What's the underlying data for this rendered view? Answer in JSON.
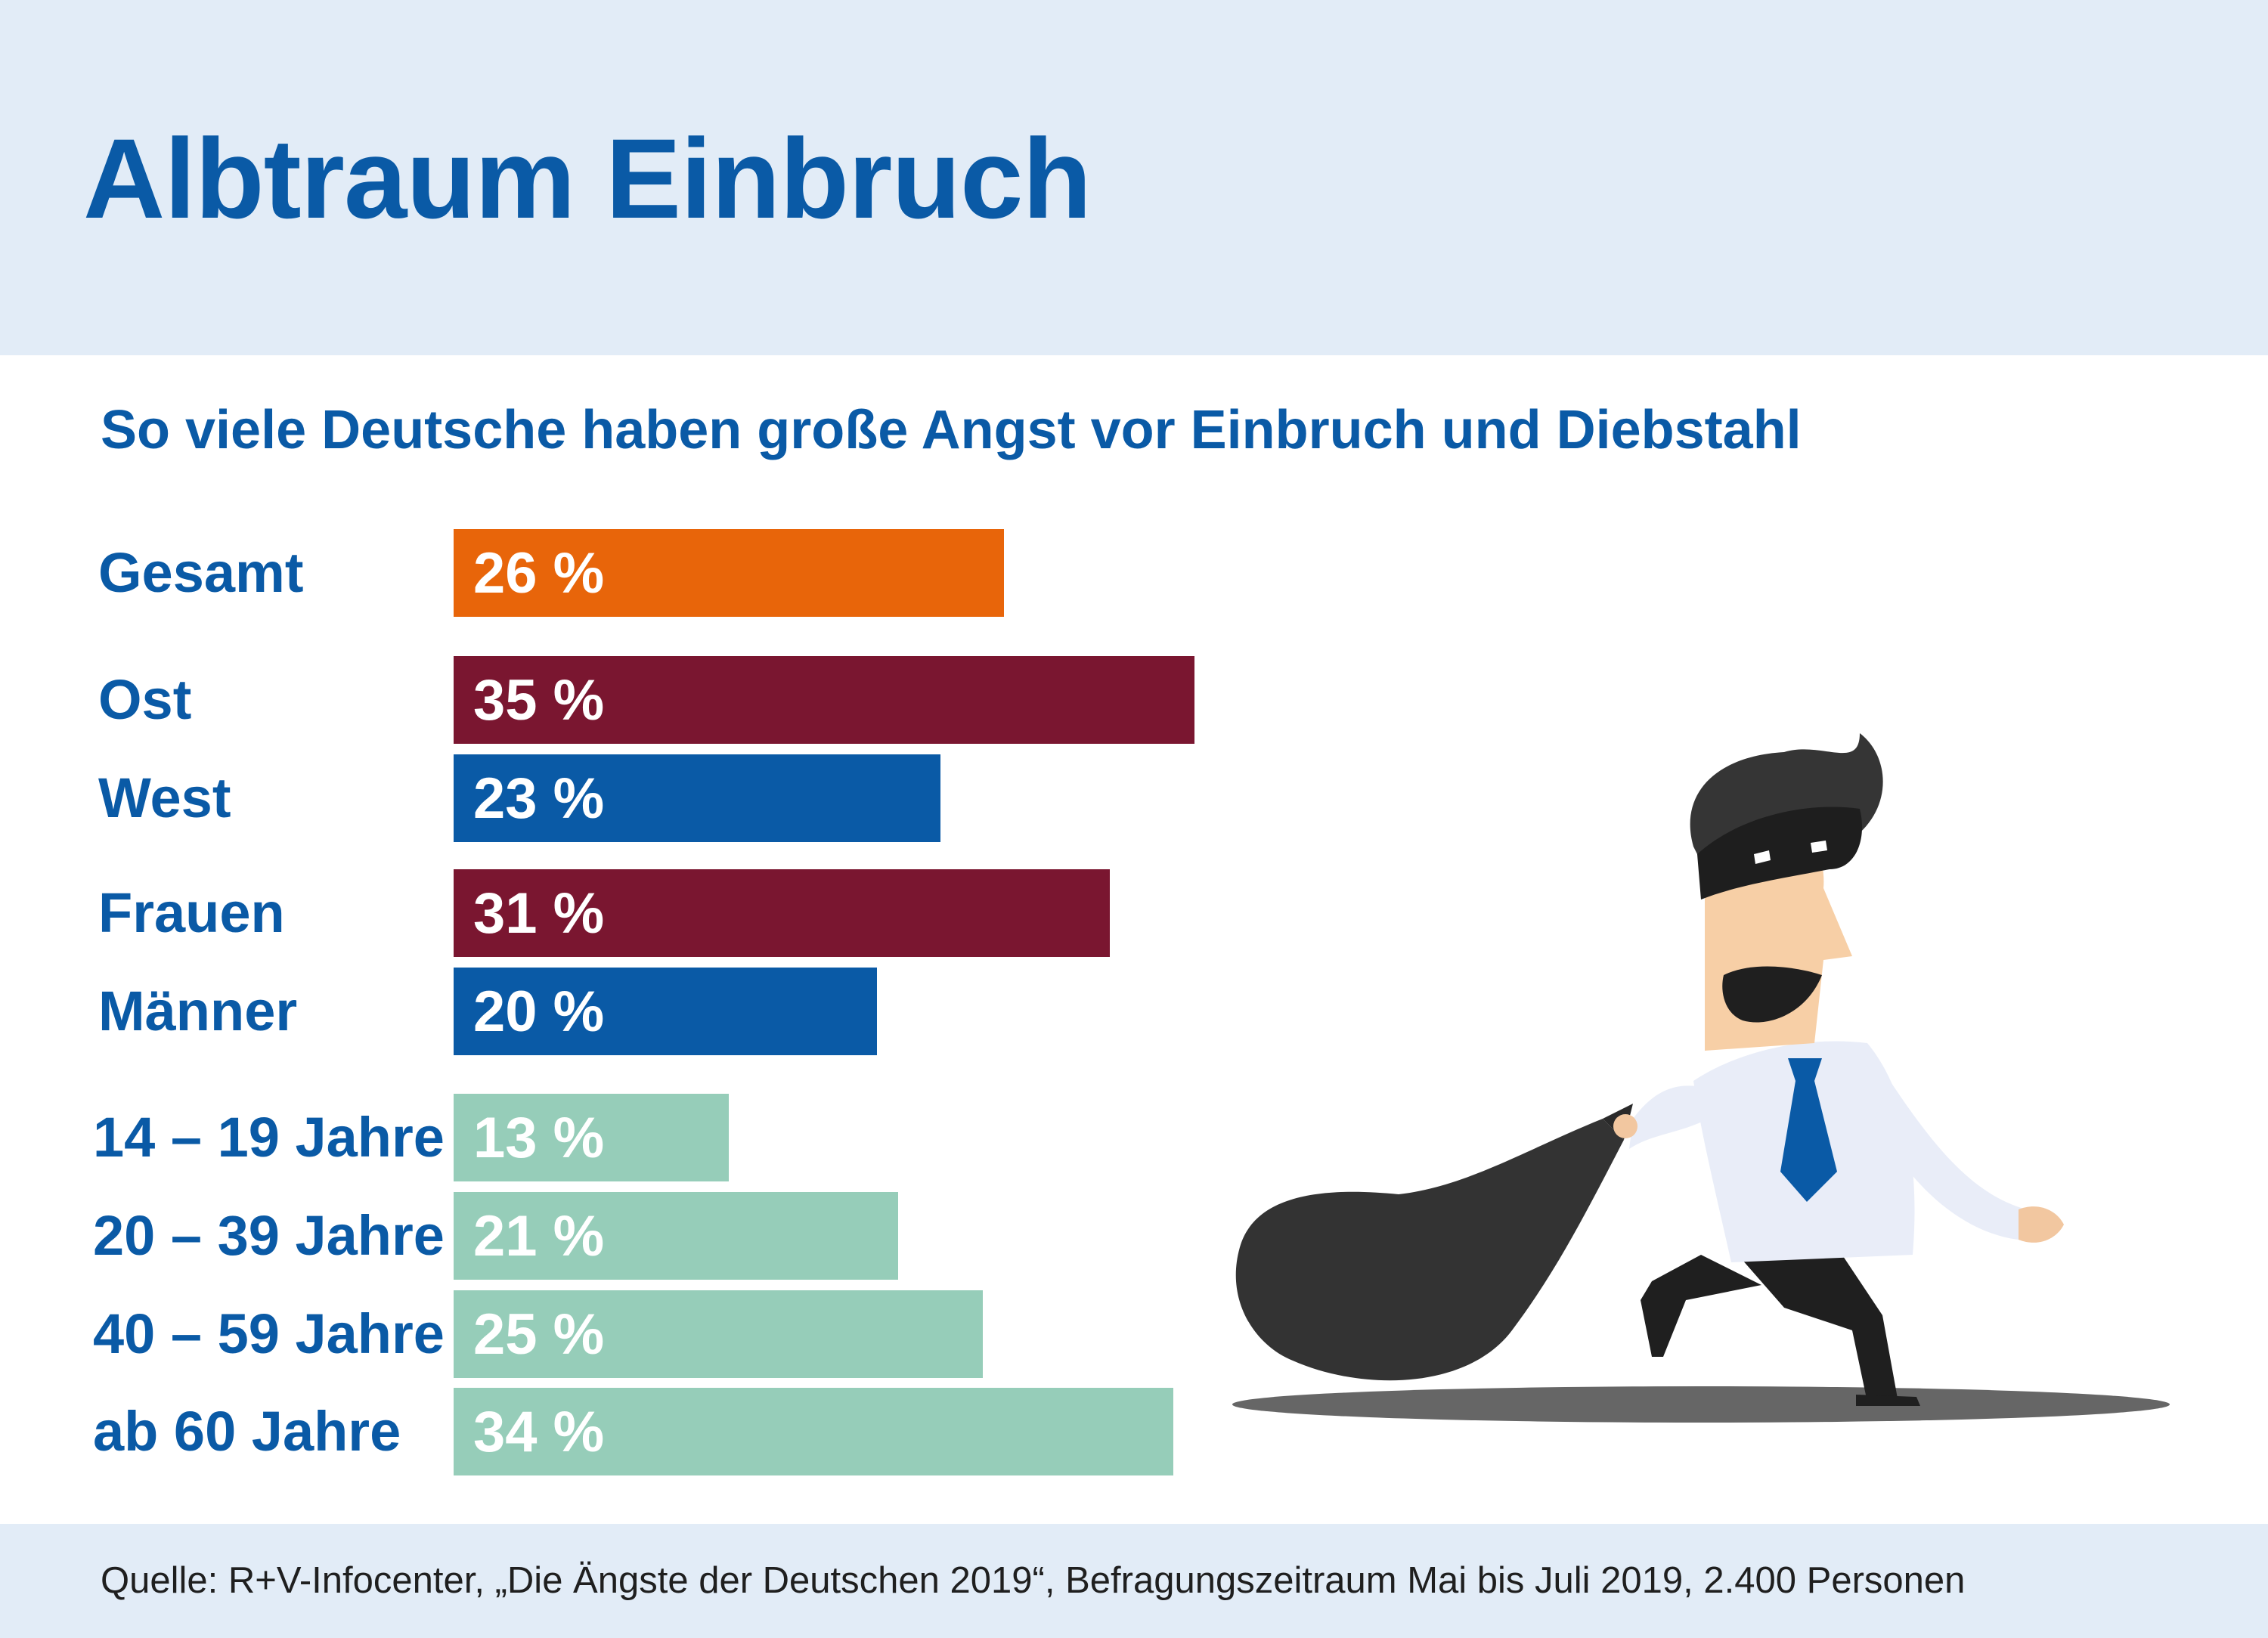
{
  "title": "Albtraum Einbruch",
  "subtitle": "So viele Deutsche haben große Angst vor Einbruch und Diebstahl",
  "source": "Quelle: R+V-Infocenter, „Die Ängste der Deutschen 2019“, Befragungszeitraum Mai bis Juli 2019, 2.400 Personen",
  "colors": {
    "header_bg": "#e2ecf7",
    "title": "#0a5aa6",
    "orange": "#e8650a",
    "burgundy": "#7a1630",
    "blue": "#0a5aa6",
    "mint": "#96cdb9"
  },
  "illustration": "cartoon burglar with black eye mask and tie, carrying a black sack",
  "chart_data": {
    "type": "bar",
    "orientation": "horizontal",
    "unit": "%",
    "categories": [
      "Gesamt",
      "Ost",
      "West",
      "Frauen",
      "Männer",
      "14 – 19 Jahre",
      "20 – 39 Jahre",
      "40 – 59 Jahre",
      "ab 60 Jahre"
    ],
    "values": [
      26,
      35,
      23,
      31,
      20,
      13,
      21,
      25,
      34
    ],
    "value_labels": [
      "26 %",
      "35 %",
      "23 %",
      "31 %",
      "20 %",
      "13 %",
      "21 %",
      "25 %",
      "34 %"
    ],
    "bar_colors": [
      "#e8650a",
      "#7a1630",
      "#0a5aa6",
      "#7a1630",
      "#0a5aa6",
      "#96cdb9",
      "#96cdb9",
      "#96cdb9",
      "#96cdb9"
    ],
    "title": "So viele Deutsche haben große Angst vor Einbruch und Diebstahl",
    "xlabel": "",
    "ylabel": "",
    "xlim": [
      0,
      35
    ],
    "grid": false,
    "legend": "none"
  }
}
